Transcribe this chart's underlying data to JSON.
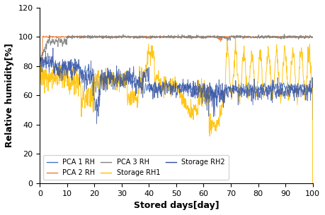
{
  "title": "",
  "xlabel": "Stored days[day]",
  "ylabel": "Relative humidity[%]",
  "xlim": [
    0,
    100
  ],
  "ylim": [
    0,
    120
  ],
  "yticks": [
    0,
    20,
    40,
    60,
    80,
    100,
    120
  ],
  "xticks": [
    0,
    10,
    20,
    30,
    40,
    50,
    60,
    70,
    80,
    90,
    100
  ],
  "colors": {
    "PCA1_RH": "#4472C4",
    "PCA2_RH": "#ED7D31",
    "PCA3_RH": "#808080",
    "Storage_RH1": "#FFC000",
    "Storage_RH2": "#2E4C9E"
  },
  "legend_labels": [
    "PCA 1 RH",
    "PCA 2 RH",
    "PCA 3 RH",
    "Storage RH1",
    "Storage RH2"
  ],
  "figsize": [
    4.59,
    3.05
  ],
  "dpi": 100
}
